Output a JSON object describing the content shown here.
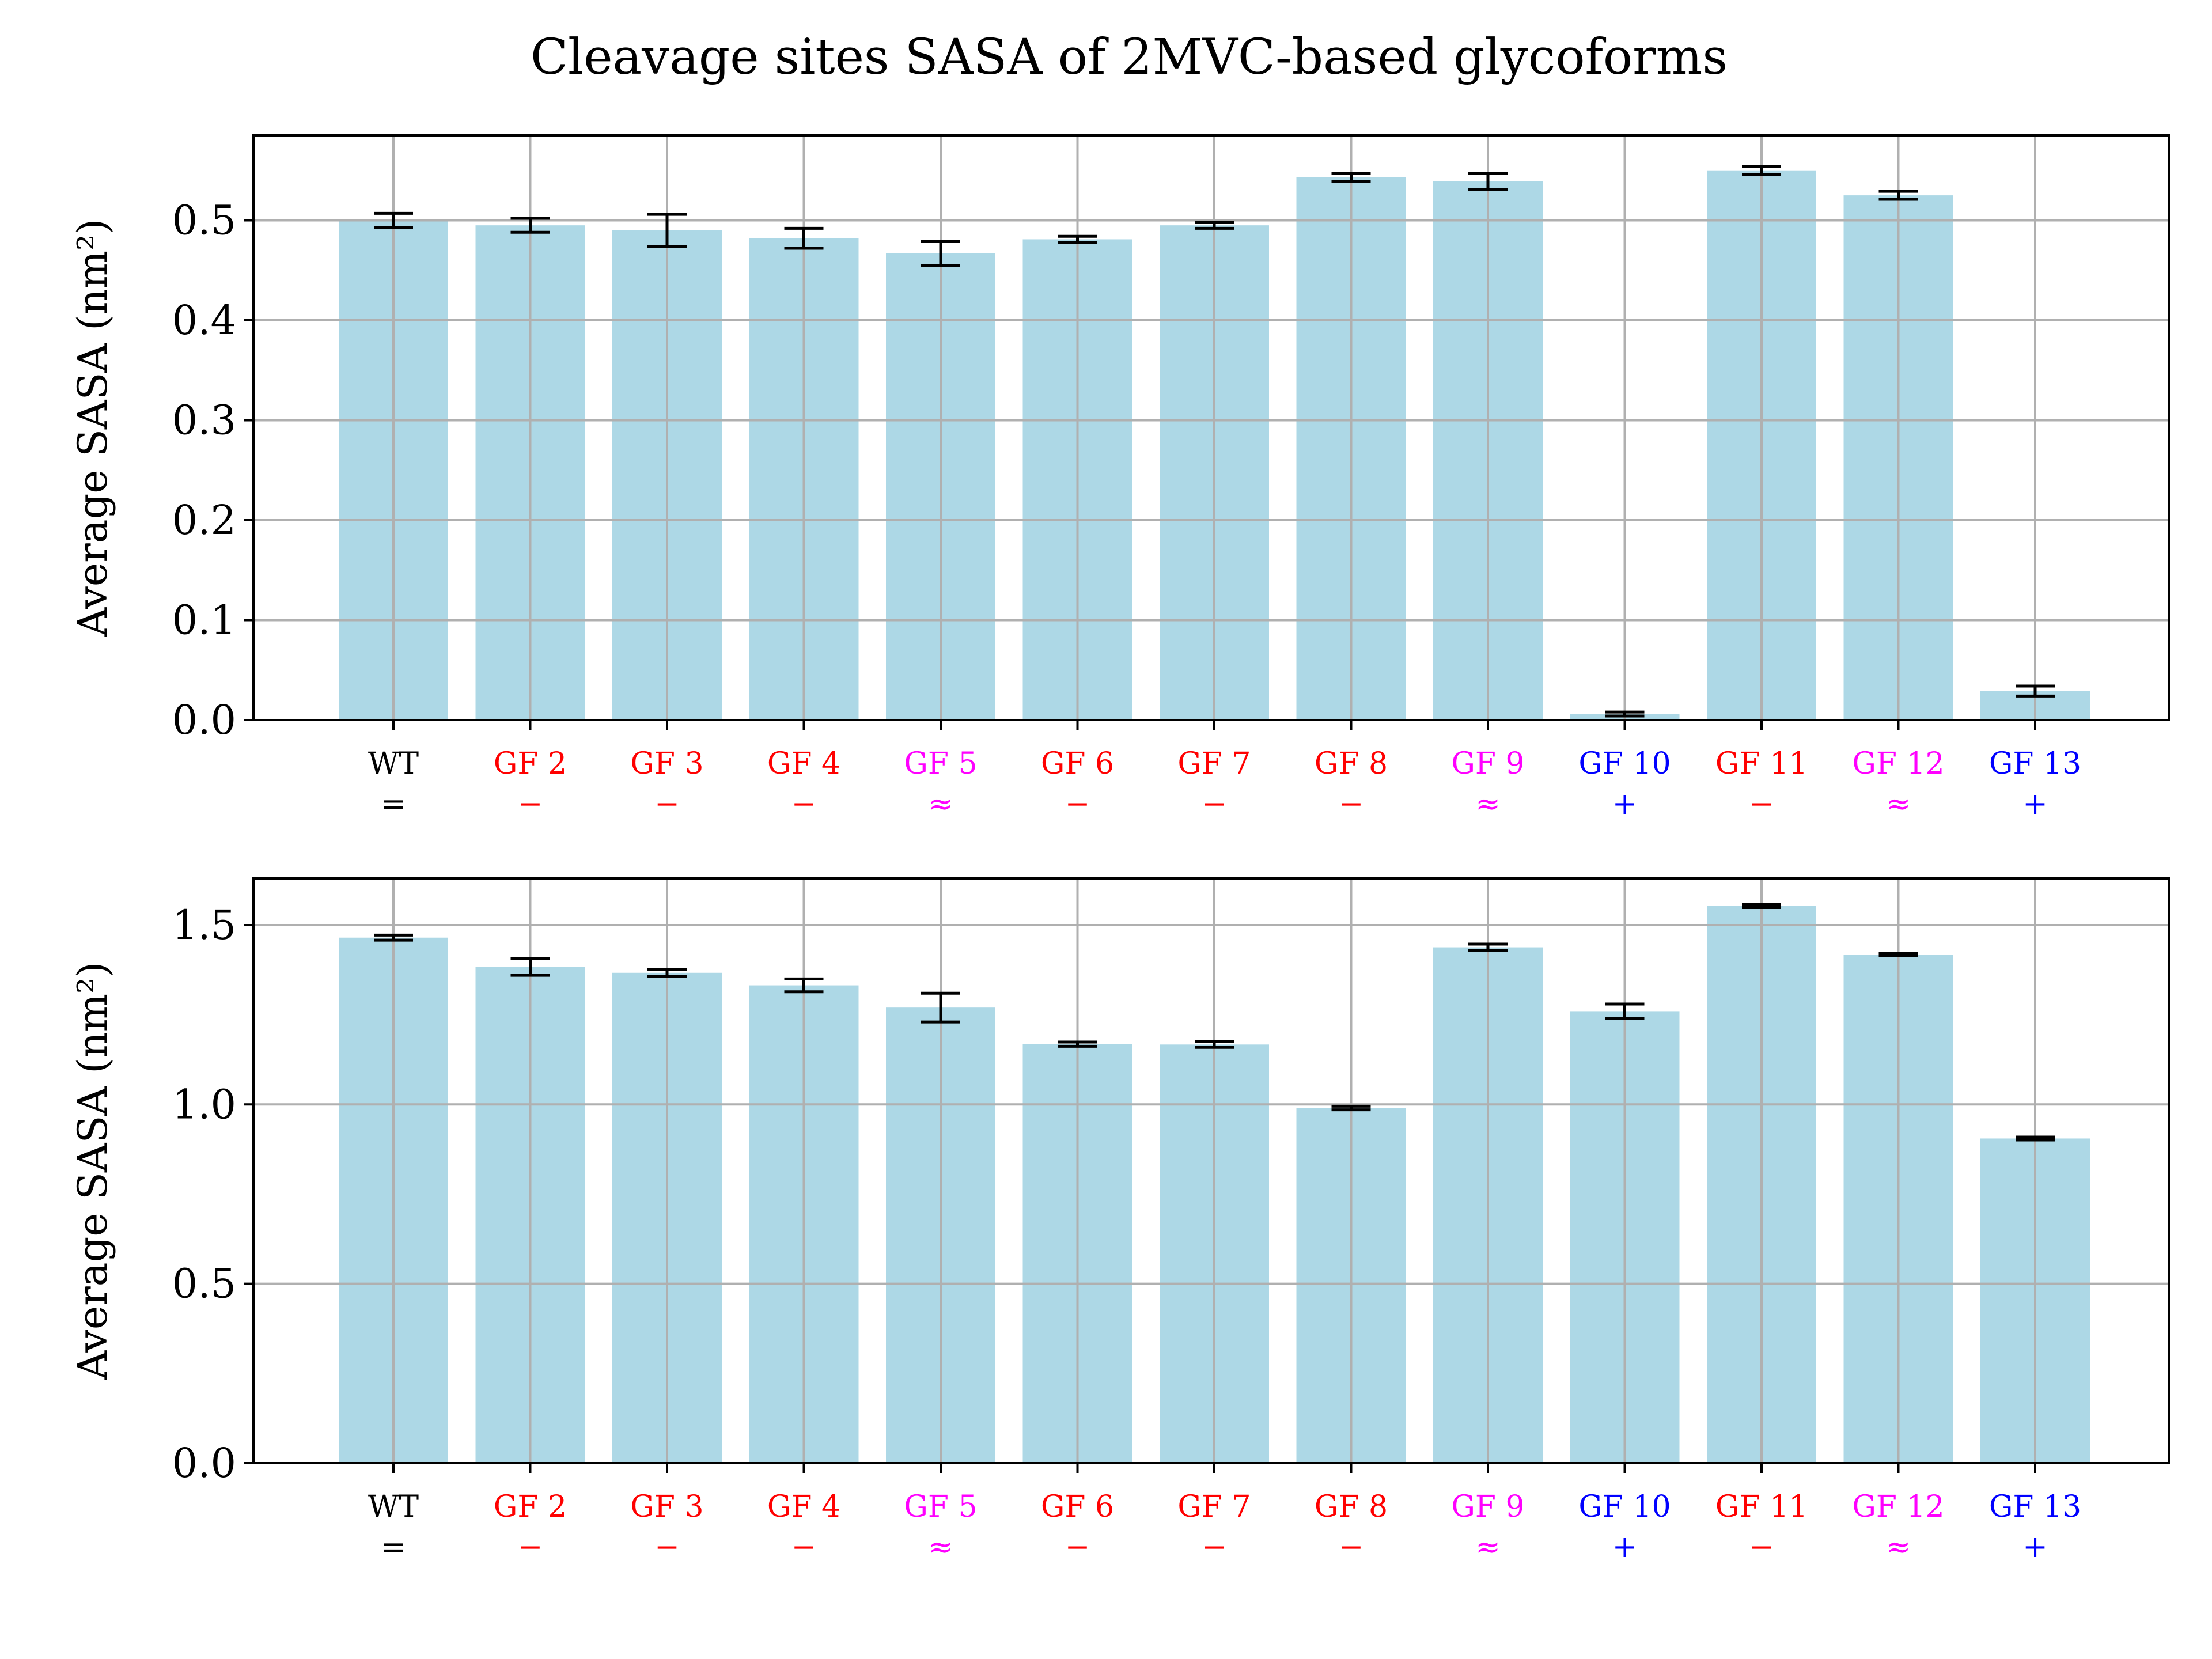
{
  "figure": {
    "title": "Cleavage sites SASA of 2MVC-based glycoforms"
  },
  "chart_data": [
    {
      "type": "bar",
      "ylabel": "Average SASA (nm²)",
      "ylim": [
        0,
        0.585
      ],
      "yticks": [
        "0.0",
        "0.1",
        "0.2",
        "0.3",
        "0.4",
        "0.5"
      ],
      "grid": true,
      "bar_color": "#add8e6",
      "categories": [
        "WT",
        "GF 2",
        "GF 3",
        "GF 4",
        "GF 5",
        "GF 6",
        "GF 7",
        "GF 8",
        "GF 9",
        "GF 10",
        "GF 11",
        "GF 12",
        "GF 13"
      ],
      "symbols": [
        "=",
        "−",
        "−",
        "−",
        "≈",
        "−",
        "−",
        "−",
        "≈",
        "+",
        "−",
        "≈",
        "+"
      ],
      "label_colors": [
        "#000000",
        "#ff0000",
        "#ff0000",
        "#ff0000",
        "#ff00ff",
        "#ff0000",
        "#ff0000",
        "#ff0000",
        "#ff00ff",
        "#0000ff",
        "#ff0000",
        "#ff00ff",
        "#0000ff"
      ],
      "values": [
        0.5,
        0.495,
        0.49,
        0.482,
        0.467,
        0.481,
        0.495,
        0.543,
        0.539,
        0.006,
        0.55,
        0.525,
        0.029
      ],
      "errors": [
        0.007,
        0.007,
        0.016,
        0.01,
        0.012,
        0.003,
        0.003,
        0.004,
        0.008,
        0.002,
        0.004,
        0.004,
        0.005
      ]
    },
    {
      "type": "bar",
      "ylabel": "Average SASA (nm²)",
      "ylim": [
        0,
        1.63
      ],
      "yticks": [
        "0.0",
        "0.5",
        "1.0",
        "1.5"
      ],
      "grid": true,
      "bar_color": "#add8e6",
      "categories": [
        "WT",
        "GF 2",
        "GF 3",
        "GF 4",
        "GF 5",
        "GF 6",
        "GF 7",
        "GF 8",
        "GF 9",
        "GF 10",
        "GF 11",
        "GF 12",
        "GF 13"
      ],
      "symbols": [
        "=",
        "−",
        "−",
        "−",
        "≈",
        "−",
        "−",
        "−",
        "≈",
        "+",
        "−",
        "≈",
        "+"
      ],
      "label_colors": [
        "#000000",
        "#ff0000",
        "#ff0000",
        "#ff0000",
        "#ff00ff",
        "#ff0000",
        "#ff0000",
        "#ff0000",
        "#ff00ff",
        "#0000ff",
        "#ff0000",
        "#ff00ff",
        "#0000ff"
      ],
      "values": [
        1.465,
        1.383,
        1.367,
        1.332,
        1.27,
        1.168,
        1.167,
        0.99,
        1.438,
        1.26,
        1.553,
        1.418,
        0.905
      ],
      "errors": [
        0.007,
        0.023,
        0.01,
        0.018,
        0.04,
        0.006,
        0.008,
        0.005,
        0.009,
        0.02,
        0.004,
        0.003,
        0.004
      ]
    }
  ]
}
